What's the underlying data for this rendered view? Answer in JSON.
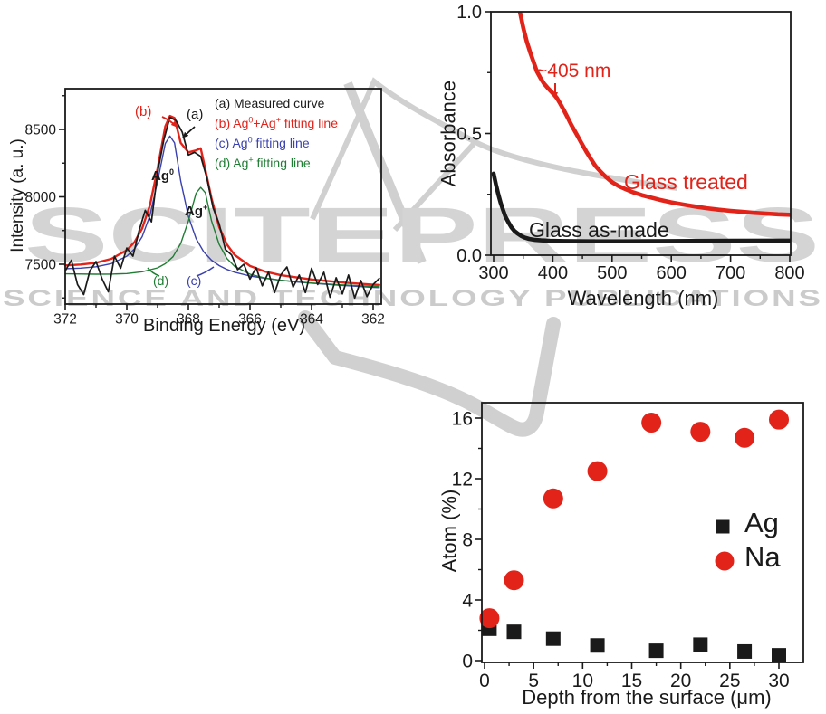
{
  "colors": {
    "red": "#e2231a",
    "blue": "#3a41ae",
    "green": "#1f7d33",
    "black": "#1a1a1a",
    "watermark_gray": "#d2d2d2"
  },
  "watermark": {
    "wordmark": "SCITEPRESS",
    "tagline": "SCIENCE AND TECHNOLOGY PUBLICATIONS"
  },
  "chart_data": [
    {
      "id": "xps",
      "type": "line",
      "title": "",
      "xlabel": "Binding Energy (eV)",
      "ylabel": "Intensity (a. u.)",
      "x_range": [
        372,
        362
      ],
      "y_range": [
        7200,
        8800
      ],
      "x_axis_reversed": true,
      "grid": false,
      "xticks": [
        372,
        370,
        368,
        366,
        364,
        362
      ],
      "xticks_minor": [
        371,
        369,
        367,
        365,
        363
      ],
      "yticks": [
        7500,
        8000,
        8500
      ],
      "yticks_minor": [
        7250,
        7750,
        8250,
        8750
      ],
      "legend_display": {
        "a": {
          "p1": "(a) Measured curve"
        },
        "b": {
          "p1": "(b) Ag",
          "s1": "0",
          "p2": "+Ag",
          "s2": "+",
          "p3": " fitting line"
        },
        "c": {
          "p1": "(c) Ag",
          "s1": "0",
          "p2": " fitting line"
        },
        "d": {
          "p1": "(d) Ag",
          "s1": "+",
          "p2": " fitting line"
        }
      },
      "annotations": {
        "a": "(a)",
        "b": "(b)",
        "c": "(c)",
        "d": "(d)",
        "ag0_base": "Ag",
        "ag0_sup": "0",
        "agp_base": "Ag",
        "agp_sup": "+"
      },
      "series": [
        {
          "name": "(c) Ag0 fitting line",
          "color": "#3a41ae",
          "width": 1.4,
          "x": [
            372,
            371.5,
            371,
            370.5,
            370,
            369.75,
            369.5,
            369.25,
            369,
            368.75,
            368.6,
            368.45,
            368.25,
            368,
            367.75,
            367.5,
            367.25,
            367,
            366.75,
            366.5,
            366,
            365.5,
            365,
            364.5,
            364,
            363.5,
            363,
            362.5,
            362,
            361.8
          ],
          "y": [
            7467,
            7471,
            7481,
            7505,
            7560,
            7614,
            7705,
            7861,
            8115,
            8395,
            8450,
            8400,
            8119,
            7855,
            7690,
            7591,
            7530,
            7490,
            7462,
            7441,
            7413,
            7395,
            7381,
            7369,
            7360,
            7351,
            7343,
            7336,
            7328,
            7327
          ]
        },
        {
          "name": "(d) Ag+ fitting line",
          "color": "#1f7d33",
          "width": 1.4,
          "x": [
            372,
            371,
            370.5,
            370,
            369.5,
            369,
            368.75,
            368.5,
            368.25,
            368,
            367.75,
            367.6,
            367.45,
            367.25,
            367,
            366.75,
            366.5,
            366,
            365.5,
            365,
            364,
            363,
            362,
            361.8
          ],
          "y": [
            7429,
            7426,
            7427,
            7431,
            7444,
            7473,
            7504,
            7556,
            7653,
            7821,
            8027,
            8070,
            8031,
            7823,
            7647,
            7543,
            7485,
            7426,
            7397,
            7381,
            7361,
            7347,
            7336,
            7335
          ]
        },
        {
          "name": "(b) Ag0+Ag+ fitting line",
          "color": "#e2231a",
          "width": 2.4,
          "x": [
            372,
            371.5,
            371,
            370.5,
            370,
            369.75,
            369.5,
            369.25,
            369,
            368.75,
            368.6,
            368.45,
            368.25,
            368,
            367.75,
            367.6,
            367.5,
            367.25,
            367,
            366.75,
            366.5,
            366,
            365.5,
            365,
            364,
            363,
            362,
            361.8
          ],
          "y": [
            7491,
            7498,
            7511,
            7540,
            7604,
            7664,
            7766,
            7936,
            8210,
            8523,
            8600,
            8585,
            8400,
            8330,
            8345,
            8360,
            8257,
            7990,
            7776,
            7647,
            7570,
            7487,
            7445,
            7419,
            7387,
            7365,
            7348,
            7347
          ]
        },
        {
          "name": "(a) Measured curve",
          "color": "#1a1a1a",
          "width": 1.7,
          "x_start": 372,
          "x_step": -0.2,
          "y": [
            7450,
            7530,
            7350,
            7275,
            7450,
            7520,
            7390,
            7295,
            7560,
            7470,
            7620,
            7560,
            7750,
            7900,
            7815,
            8180,
            8420,
            8590,
            8565,
            8480,
            8310,
            8330,
            8300,
            8140,
            7920,
            7800,
            7610,
            7570,
            7460,
            7500,
            7390,
            7475,
            7340,
            7440,
            7290,
            7420,
            7480,
            7330,
            7420,
            7290,
            7470,
            7350,
            7440,
            7255,
            7400,
            7280,
            7420,
            7250,
            7380,
            7260,
            7350,
            7395
          ]
        }
      ]
    },
    {
      "id": "absorbance",
      "type": "line",
      "title": "",
      "xlabel": "Wavelength (nm)",
      "ylabel": "Absorbance",
      "x_range": [
        300,
        800
      ],
      "y_range": [
        0,
        1.0
      ],
      "grid": false,
      "xticks": [
        300,
        400,
        500,
        600,
        700,
        800
      ],
      "xticks_minor": [
        350,
        450,
        550,
        650,
        750
      ],
      "yticks": [
        0,
        0.5,
        1
      ],
      "ytick_labels": [
        "0.0",
        "0.5",
        "1.0"
      ],
      "yticks_minor": [
        0.25,
        0.75
      ],
      "annotations": {
        "peak": "~405 nm",
        "treated": "Glass treated",
        "asmade": "Glass as-made"
      },
      "series": [
        {
          "name": "Glass treated",
          "color": "#e2231a",
          "width": 4.6,
          "x": [
            338,
            344,
            350,
            356,
            362,
            368,
            373,
            379,
            385,
            391,
            397,
            402,
            407,
            412,
            418,
            425,
            432,
            440,
            448,
            456,
            464,
            472,
            480,
            490,
            500,
            512,
            524,
            536,
            550,
            565,
            580,
            600,
            620,
            640,
            660,
            680,
            700,
            720,
            740,
            760,
            780,
            800
          ],
          "y": [
            1.08,
            1.005,
            0.935,
            0.878,
            0.832,
            0.79,
            0.755,
            0.728,
            0.705,
            0.688,
            0.673,
            0.66,
            0.645,
            0.625,
            0.598,
            0.565,
            0.532,
            0.497,
            0.462,
            0.428,
            0.396,
            0.366,
            0.345,
            0.32,
            0.3,
            0.283,
            0.27,
            0.258,
            0.247,
            0.237,
            0.228,
            0.217,
            0.208,
            0.2,
            0.193,
            0.187,
            0.182,
            0.178,
            0.174,
            0.171,
            0.168,
            0.166
          ]
        },
        {
          "name": "Glass as-made",
          "color": "#1a1a1a",
          "width": 4.6,
          "x": [
            300,
            304,
            308,
            312,
            316,
            320,
            325,
            330,
            335,
            340,
            346,
            352,
            360,
            370,
            380,
            395,
            420,
            460,
            520,
            600,
            700,
            800
          ],
          "y": [
            0.335,
            0.29,
            0.25,
            0.215,
            0.185,
            0.158,
            0.135,
            0.115,
            0.1,
            0.09,
            0.08,
            0.073,
            0.067,
            0.063,
            0.061,
            0.059,
            0.058,
            0.057,
            0.057,
            0.058,
            0.059,
            0.06
          ]
        }
      ]
    },
    {
      "id": "depth",
      "type": "scatter",
      "title": "",
      "xlabel": "Depth from the surface (μm)",
      "ylabel": "Atom (%)",
      "x_range": [
        0,
        30
      ],
      "y_range": [
        0,
        16
      ],
      "grid": false,
      "xticks": [
        0,
        5,
        10,
        15,
        20,
        25,
        30
      ],
      "xticks_minor": [
        2.5,
        7.5,
        12.5,
        17.5,
        22.5,
        27.5
      ],
      "yticks": [
        0,
        4,
        8,
        12,
        16
      ],
      "yticks_minor": [
        2,
        6,
        10,
        14
      ],
      "legend": {
        "ag": "Ag",
        "na": "Na"
      },
      "series": [
        {
          "name": "Ag",
          "color": "#1a1a1a",
          "marker": "square",
          "size": 16,
          "x": [
            0.5,
            3,
            7,
            11.5,
            17.5,
            22,
            26.5,
            30
          ],
          "y": [
            2.1,
            1.9,
            1.45,
            1.0,
            0.65,
            1.05,
            0.6,
            0.35
          ]
        },
        {
          "name": "Na",
          "color": "#e2231a",
          "marker": "circle",
          "size": 22,
          "x": [
            0.5,
            3,
            7,
            11.5,
            17,
            22,
            26.5,
            30
          ],
          "y": [
            2.8,
            5.3,
            10.7,
            12.5,
            15.7,
            15.1,
            14.7,
            15.9
          ]
        }
      ]
    }
  ]
}
